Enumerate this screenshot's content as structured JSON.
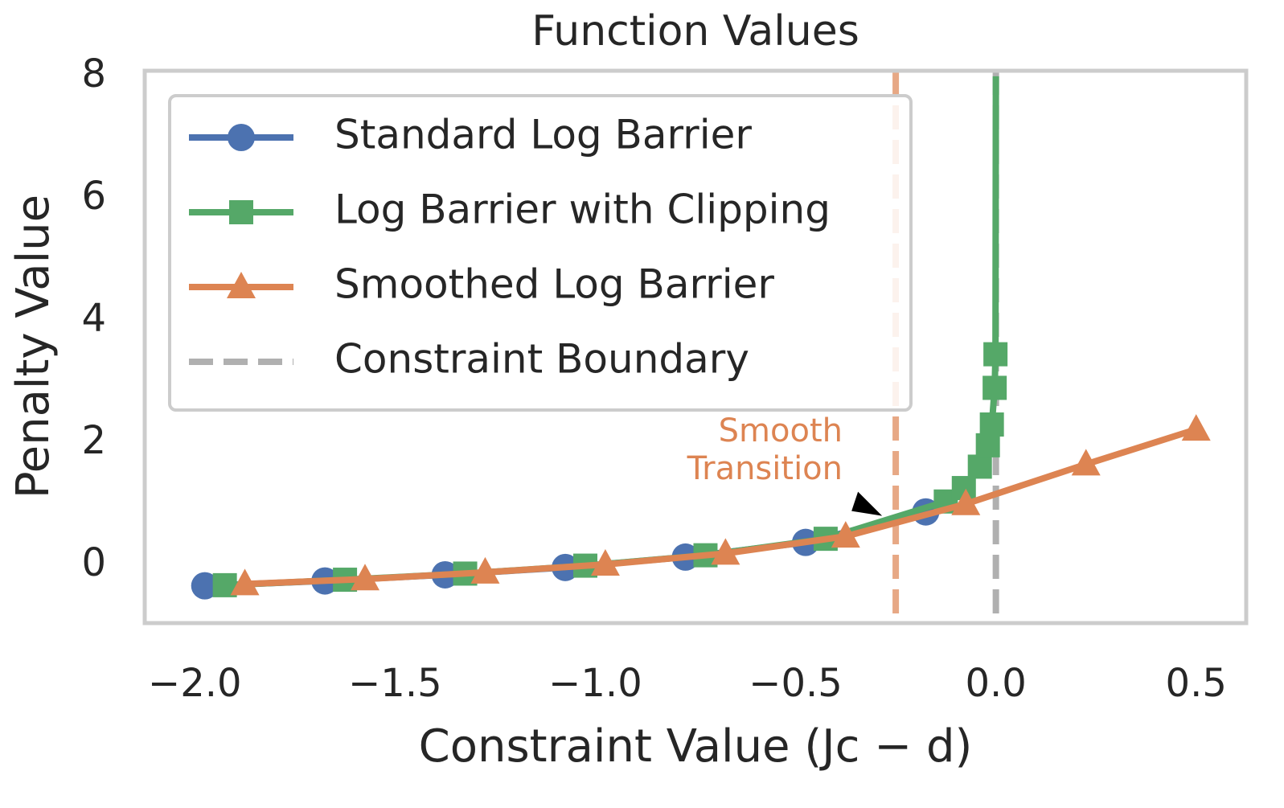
{
  "chart_data": {
    "type": "line",
    "title": "Function Values",
    "x_label": "Constraint Value (Jc − d)",
    "y_label": "Penalty Value",
    "xlim": [
      -2.125,
      0.625
    ],
    "ylim": [
      -0.95,
      8.09
    ],
    "xticks": [
      {
        "value": -2.0,
        "label": "−2.0"
      },
      {
        "value": -1.5,
        "label": "−1.5"
      },
      {
        "value": -1.0,
        "label": "−1.0"
      },
      {
        "value": -0.5,
        "label": "−0.5"
      },
      {
        "value": 0.0,
        "label": "0.0"
      },
      {
        "value": 0.5,
        "label": "0.5"
      }
    ],
    "yticks": [
      0,
      2,
      4,
      6,
      8
    ],
    "grid": false,
    "legend": "upper left",
    "series": [
      {
        "name": "Standard Log Barrier",
        "color": "#4c72b0",
        "marker": "circle",
        "x": [
          -1.975,
          -1.675,
          -1.375,
          -1.075,
          -0.775,
          -0.475,
          -0.175
        ],
        "values": [
          -0.34,
          -0.26,
          -0.16,
          -0.04,
          0.13,
          0.37,
          0.87
        ]
      },
      {
        "name": "Log Barrier with Clipping",
        "color": "#55a868",
        "marker": "square",
        "x": [
          -1.925,
          -1.625,
          -1.325,
          -1.025,
          -0.725,
          -0.425,
          -0.125,
          -0.08,
          -0.04,
          -0.02,
          -0.01,
          -0.003,
          -0.001,
          0
        ],
        "values": [
          -0.33,
          -0.24,
          -0.14,
          -0.01,
          0.16,
          0.43,
          1.04,
          1.26,
          1.61,
          1.96,
          2.3,
          2.9,
          3.45,
          8
        ]
      },
      {
        "name": "Smoothed Log Barrier",
        "color": "#dd8452",
        "marker": "triangle",
        "x": [
          -1.875,
          -1.575,
          -1.275,
          -0.975,
          -0.675,
          -0.375,
          -0.075,
          0.225,
          0.5
        ],
        "values": [
          -0.31,
          -0.23,
          -0.12,
          0.01,
          0.19,
          0.47,
          1.0,
          1.65,
          2.22
        ]
      }
    ],
    "vlines": [
      {
        "name": "Constraint Boundary",
        "x": 0,
        "color": "#b0b0b0"
      },
      {
        "x": -0.25,
        "color": "#dd8452"
      }
    ],
    "annotation": {
      "lines": [
        "Smooth",
        "Transition"
      ],
      "color": "#dd8452",
      "x": -0.28,
      "y": 0.7
    }
  }
}
